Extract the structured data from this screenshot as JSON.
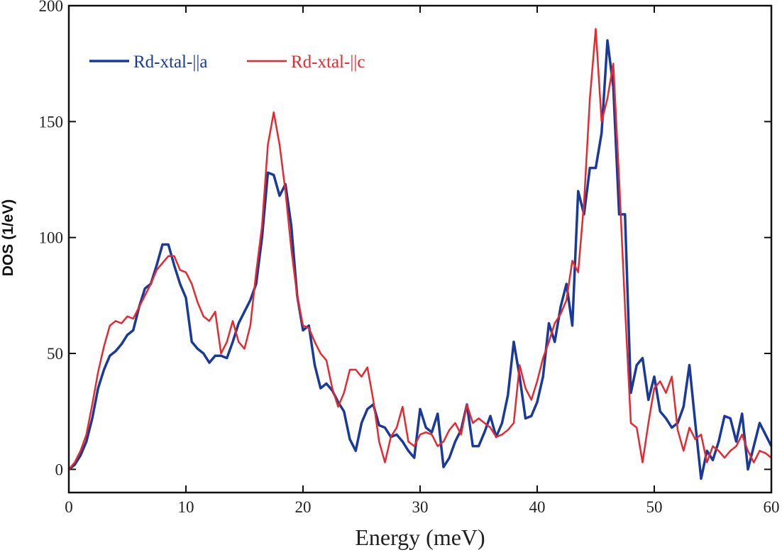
{
  "chart_data": {
    "type": "line",
    "x_label": "Energy (meV)",
    "y_label": "DOS (1/eV)",
    "x": [
      0,
      0.5,
      1,
      1.5,
      2,
      2.5,
      3,
      3.5,
      4,
      4.5,
      5,
      5.5,
      6,
      6.5,
      7,
      7.5,
      8,
      8.5,
      9,
      9.5,
      10,
      10.5,
      11,
      11.5,
      12,
      12.5,
      13,
      13.5,
      14,
      14.5,
      15,
      15.5,
      16,
      16.5,
      17,
      17.5,
      18,
      18.5,
      19,
      19.5,
      20,
      20.5,
      21,
      21.5,
      22,
      22.5,
      23,
      23.5,
      24,
      24.5,
      25,
      25.5,
      26,
      26.5,
      27,
      27.5,
      28,
      28.5,
      29,
      29.5,
      30,
      30.5,
      31,
      31.5,
      32,
      32.5,
      33,
      33.5,
      34,
      34.5,
      35,
      35.5,
      36,
      36.5,
      37,
      37.5,
      38,
      38.5,
      39,
      39.5,
      40,
      40.5,
      41,
      41.5,
      42,
      42.5,
      43,
      43.5,
      44,
      44.5,
      45,
      45.5,
      46,
      46.5,
      47,
      47.5,
      48,
      48.5,
      49,
      49.5,
      50,
      50.5,
      51,
      51.5,
      52,
      52.5,
      53,
      53.5,
      54,
      54.5,
      55,
      55.5,
      56,
      56.5,
      57,
      57.5,
      58,
      58.5,
      59,
      59.5,
      60
    ],
    "series": [
      {
        "name": "Rd-xtal-||a",
        "color": "#1a3a9a",
        "values": [
          0,
          2,
          6,
          12,
          22,
          35,
          43,
          49,
          51,
          54,
          58,
          60,
          70,
          78,
          80,
          88,
          97,
          97,
          88,
          80,
          74,
          55,
          52,
          50,
          46,
          49,
          49,
          48,
          55,
          63,
          68,
          73,
          80,
          100,
          128,
          127,
          118,
          123,
          105,
          75,
          60,
          62,
          45,
          35,
          37,
          34,
          29,
          25,
          13,
          8,
          20,
          26,
          28,
          19,
          18,
          14,
          15,
          12,
          8,
          5,
          26,
          18,
          16,
          24,
          1,
          5,
          12,
          17,
          28,
          10,
          10,
          16,
          23,
          14,
          20,
          32,
          55,
          40,
          22,
          23,
          29,
          40,
          63,
          55,
          70,
          80,
          62,
          120,
          110,
          130,
          130,
          145,
          185,
          165,
          110,
          110,
          33,
          45,
          48,
          30,
          40,
          25,
          22,
          18,
          20,
          27,
          45,
          20,
          -4,
          8,
          4,
          12,
          23,
          22,
          12,
          24,
          0,
          10,
          20,
          15,
          10
        ]
      },
      {
        "name": "Rd-xtal-||c",
        "color": "#e8282e",
        "values": [
          0,
          3,
          8,
          15,
          28,
          42,
          53,
          62,
          64,
          63,
          66,
          65,
          70,
          75,
          80,
          86,
          89,
          92,
          92,
          86,
          85,
          80,
          72,
          66,
          64,
          68,
          50,
          55,
          64,
          55,
          52,
          62,
          85,
          105,
          140,
          154,
          140,
          120,
          95,
          75,
          62,
          61,
          55,
          50,
          47,
          35,
          27,
          33,
          43,
          43,
          40,
          44,
          30,
          12,
          3,
          14,
          18,
          27,
          12,
          10,
          15,
          16,
          15,
          10,
          12,
          17,
          20,
          15,
          28,
          20,
          22,
          20,
          18,
          14,
          15,
          17,
          20,
          45,
          35,
          30,
          38,
          48,
          55,
          63,
          67,
          73,
          90,
          85,
          115,
          160,
          190,
          150,
          160,
          175,
          125,
          70,
          20,
          18,
          3,
          20,
          35,
          38,
          33,
          40,
          17,
          8,
          18,
          13,
          15,
          3,
          10,
          8,
          5,
          8,
          10,
          15,
          8,
          3,
          8,
          7,
          5
        ]
      }
    ],
    "xlim": [
      0,
      60
    ],
    "xticks": [
      0,
      10,
      20,
      30,
      40,
      50,
      60
    ],
    "ylim": [
      -10,
      200
    ],
    "yticks": [
      0,
      50,
      100,
      150,
      200
    ]
  }
}
